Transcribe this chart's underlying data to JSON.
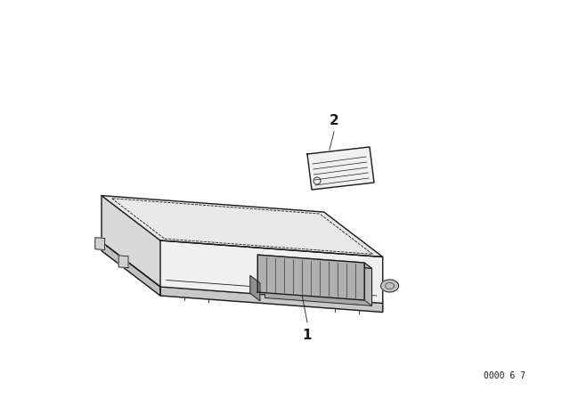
{
  "bg_color": "#ffffff",
  "line_color": "#1a1a1a",
  "fig_width": 6.4,
  "fig_height": 4.48,
  "dpi": 100,
  "watermark": "0000 6 7",
  "label1": "1",
  "label2": "2"
}
